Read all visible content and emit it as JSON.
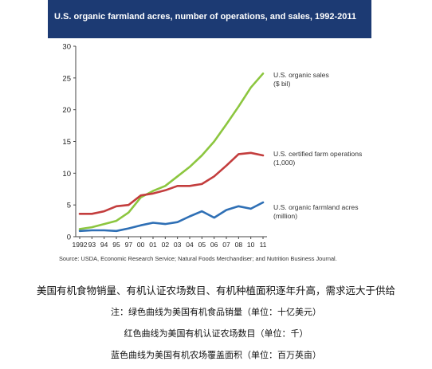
{
  "chart_data": {
    "type": "line",
    "title": "U.S. organic farmland acres, number of operations, and sales, 1992-2011",
    "x": [
      "1992",
      "93",
      "94",
      "95",
      "97",
      "00",
      "01",
      "02",
      "03",
      "04",
      "05",
      "06",
      "07",
      "08",
      "10",
      "11"
    ],
    "ylim": [
      0,
      30
    ],
    "yticks": [
      0,
      5,
      10,
      15,
      20,
      25,
      30
    ],
    "grid": false,
    "series": [
      {
        "name": "U.S. organic sales ($ bil)",
        "color": "#8cc63f",
        "values": [
          1.2,
          1.5,
          2.0,
          2.5,
          3.8,
          6.2,
          7.2,
          8.0,
          9.5,
          11.0,
          12.8,
          15.0,
          17.7,
          20.5,
          23.5,
          25.7
        ]
      },
      {
        "name": "U.S. certified farm operations (1,000)",
        "color": "#c33d3d",
        "values": [
          3.6,
          3.6,
          4.0,
          4.8,
          5.0,
          6.5,
          6.8,
          7.3,
          8.0,
          8.0,
          8.3,
          9.5,
          11.2,
          13.0,
          13.2,
          12.8
        ]
      },
      {
        "name": "U.S. organic farmland acres (million)",
        "color": "#2e6fb5",
        "values": [
          0.9,
          1.0,
          1.0,
          0.9,
          1.3,
          1.8,
          2.2,
          2.0,
          2.3,
          3.2,
          4.0,
          3.0,
          4.2,
          4.8,
          4.4,
          5.4
        ]
      }
    ],
    "labels": [
      {
        "lines": [
          "U.S. organic sales",
          "($ bil)"
        ]
      },
      {
        "lines": [
          "U.S. certified farm operations",
          "(1,000)"
        ]
      },
      {
        "lines": [
          "U.S. organic farmland acres",
          "(million)"
        ]
      }
    ]
  },
  "source": "Source: USDA, Economic Research Service; Natural Foods Merchandiser; and Nutrition Business Journal.",
  "captions": {
    "line1": "美国有机食物销量、有机认证农场数目、有机种植面积逐年升高，需求远大于供给",
    "line2": "注：绿色曲线为美国有机食品销量（单位：十亿美元）",
    "line3": "红色曲线为美国有机认证农场数目（单位：千）",
    "line4": "蓝色曲线为美国有机农场覆盖面积（单位：百万英亩）"
  },
  "colors": {
    "title_bar": "#1c3a73",
    "axis": "#444444"
  }
}
